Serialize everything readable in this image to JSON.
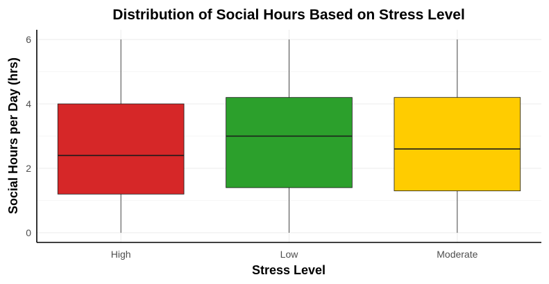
{
  "chart_data": {
    "type": "boxplot",
    "title": "Distribution of Social Hours Based on Stress Level",
    "xlabel": "Stress Level",
    "ylabel": "Social Hours per Day (hrs)",
    "ylim": [
      -0.3,
      6.3
    ],
    "yticks": [
      0,
      2,
      4,
      6
    ],
    "grid": true,
    "legend": "none",
    "categories": [
      "High",
      "Low",
      "Moderate"
    ],
    "boxes": [
      {
        "category": "High",
        "min": 0,
        "q1": 1.2,
        "median": 2.4,
        "q3": 4.0,
        "max": 6.0,
        "color": "#d62728"
      },
      {
        "category": "Low",
        "min": 0,
        "q1": 1.4,
        "median": 3.0,
        "q3": 4.2,
        "max": 6.0,
        "color": "#2ca02c"
      },
      {
        "category": "Moderate",
        "min": 0,
        "q1": 1.3,
        "median": 2.6,
        "q3": 4.2,
        "max": 6.0,
        "color": "#ffcc00"
      }
    ]
  }
}
